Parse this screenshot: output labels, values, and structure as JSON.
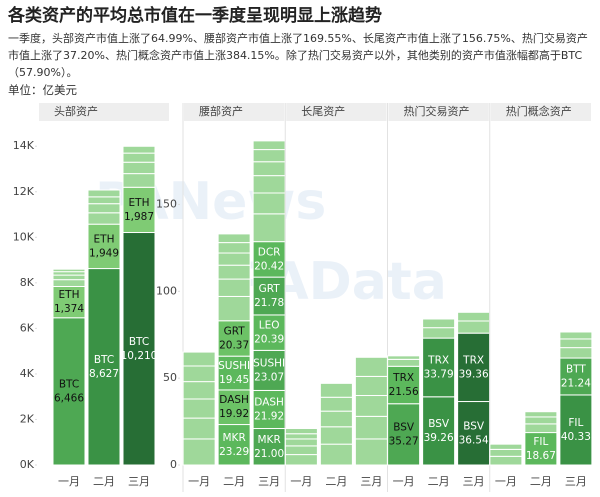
{
  "title": "各类资产的平均总市值在一季度呈现明显上涨趋势",
  "subtitle": "一季度，头部资产市值上涨了64.99%、腰部资产市值上涨了169.55%、长尾资产市值上涨了156.75%、热门交易资产市值上涨了37.20%、热门概念资产市值上涨384.15%。除了热门交易资产以外，其他类别的资产市值涨幅都高于BTC（57.90%）。",
  "unit": "单位：亿美元",
  "watermarks": [
    "PANews",
    "PAData"
  ],
  "chart_data": [
    {
      "type": "bar",
      "stacked": true,
      "stripe_color": "#9fd89a",
      "ylim": [
        0,
        14800
      ],
      "yticks": [
        {
          "value": 0,
          "label": "0K"
        },
        {
          "value": 2000,
          "label": "2K"
        },
        {
          "value": 4000,
          "label": "4K"
        },
        {
          "value": 6000,
          "label": "6K"
        },
        {
          "value": 8000,
          "label": "8K"
        },
        {
          "value": 10000,
          "label": "10K"
        },
        {
          "value": 12000,
          "label": "12K"
        },
        {
          "value": 14000,
          "label": "14K"
        }
      ],
      "groups": [
        {
          "name": "头部资产",
          "categories": [
            "一月",
            "二月",
            "三月"
          ],
          "bars": [
            {
              "segments": [
                {
                  "name": "BTC",
                  "value": 6466,
                  "value_label": "6,466",
                  "color": "#4ea853"
                },
                {
                  "name": "ETH",
                  "value": 1374,
                  "value_label": "1,374",
                  "color": "#7fcb74"
                },
                {
                  "value": 300
                },
                {
                  "value": 200
                },
                {
                  "value": 150
                },
                {
                  "value": 110
                }
              ]
            },
            {
              "segments": [
                {
                  "name": "BTC",
                  "value": 8627,
                  "value_label": "8,627",
                  "color": "#3a9245"
                },
                {
                  "name": "ETH",
                  "value": 1949,
                  "value_label": "1,949",
                  "color": "#7fcb74"
                },
                {
                  "value": 500
                },
                {
                  "value": 400
                },
                {
                  "value": 300
                },
                {
                  "value": 300
                }
              ]
            },
            {
              "segments": [
                {
                  "name": "BTC",
                  "value": 10210,
                  "value_label": "10,210",
                  "color": "#276e35"
                },
                {
                  "name": "ETH",
                  "value": 1987,
                  "value_label": "1,987",
                  "color": "#7fcb74"
                },
                {
                  "value": 600
                },
                {
                  "value": 500
                },
                {
                  "value": 400
                },
                {
                  "value": 300
                }
              ]
            }
          ]
        }
      ]
    },
    {
      "type": "bar",
      "stacked": true,
      "stripe_color": "#9fd89a",
      "ylim": [
        0,
        194
      ],
      "yticks": [
        0,
        50,
        100,
        150
      ],
      "groups": [
        {
          "name": "腰部资产",
          "categories": [
            "一月",
            "二月",
            "三月"
          ],
          "bars": [
            {
              "segments": [
                {
                  "value": 15
                },
                {
                  "value": 12
                },
                {
                  "value": 11
                },
                {
                  "value": 10
                },
                {
                  "value": 9
                },
                {
                  "value": 8
                }
              ]
            },
            {
              "segments": [
                {
                  "name": "MKR",
                  "value": 23.29,
                  "color": "#5cb85c"
                },
                {
                  "name": "DASH",
                  "value": 19.92,
                  "color": "#6cc266"
                },
                {
                  "name": "SUSHI",
                  "value": 19.45,
                  "color": "#5cb85c"
                },
                {
                  "name": "GRT",
                  "value": 20.37,
                  "color": "#6cc266"
                },
                {
                  "value": 14
                },
                {
                  "value": 10
                },
                {
                  "value": 8
                },
                {
                  "value": 7
                },
                {
                  "value": 6
                },
                {
                  "value": 5
                }
              ]
            },
            {
              "segments": [
                {
                  "name": "MKR",
                  "value": 21.0,
                  "value_label": "21.00",
                  "color": "#4ea853"
                },
                {
                  "name": "DASH",
                  "value": 21.92,
                  "color": "#5cb85c"
                },
                {
                  "name": "SUSHI",
                  "value": 23.07,
                  "color": "#4ea853"
                },
                {
                  "name": "LEO",
                  "value": 20.39,
                  "color": "#5cb85c"
                },
                {
                  "name": "GRT",
                  "value": 21.78,
                  "color": "#4ea853"
                },
                {
                  "name": "DCR",
                  "value": 20.42,
                  "color": "#5cb85c"
                },
                {
                  "value": 16
                },
                {
                  "value": 12
                },
                {
                  "value": 10
                },
                {
                  "value": 8
                },
                {
                  "value": 7
                },
                {
                  "value": 5
                }
              ]
            }
          ]
        },
        {
          "name": "长尾资产",
          "categories": [
            "一月",
            "二月",
            "三月"
          ],
          "bars": [
            {
              "segments": [
                {
                  "value": 6
                },
                {
                  "value": 5
                },
                {
                  "value": 4
                },
                {
                  "value": 3
                },
                {
                  "value": 3
                }
              ]
            },
            {
              "segments": [
                {
                  "value": 12
                },
                {
                  "value": 10
                },
                {
                  "value": 9
                },
                {
                  "value": 8
                },
                {
                  "value": 8
                }
              ]
            },
            {
              "segments": [
                {
                  "value": 15
                },
                {
                  "value": 13
                },
                {
                  "value": 12
                },
                {
                  "value": 11
                },
                {
                  "value": 11
                }
              ]
            }
          ]
        },
        {
          "name": "热门交易资产",
          "categories": [
            "一月",
            "二月",
            "三月"
          ],
          "bars": [
            {
              "segments": [
                {
                  "name": "BSV",
                  "value": 35.27,
                  "color": "#4ea853"
                },
                {
                  "name": "TRX",
                  "value": 21.56,
                  "color": "#5cb85c"
                },
                {
                  "value": 4
                },
                {
                  "value": 2
                }
              ]
            },
            {
              "segments": [
                {
                  "name": "BSV",
                  "value": 39.26,
                  "color": "#3a9245"
                },
                {
                  "name": "TRX",
                  "value": 33.79,
                  "color": "#3a9245"
                },
                {
                  "value": 6
                },
                {
                  "value": 5
                }
              ]
            },
            {
              "segments": [
                {
                  "name": "BSV",
                  "value": 36.54,
                  "color": "#276e35"
                },
                {
                  "name": "TRX",
                  "value": 39.36,
                  "color": "#276e35"
                },
                {
                  "value": 7
                },
                {
                  "value": 5
                }
              ]
            }
          ]
        },
        {
          "name": "热门概念资产",
          "categories": [
            "一月",
            "二月",
            "三月"
          ],
          "bars": [
            {
              "segments": [
                {
                  "value": 5
                },
                {
                  "value": 4
                },
                {
                  "value": 3
                }
              ]
            },
            {
              "segments": [
                {
                  "name": "FIL",
                  "value": 18.67,
                  "color": "#5cb85c"
                },
                {
                  "value": 5
                },
                {
                  "value": 4
                },
                {
                  "value": 3
                }
              ]
            },
            {
              "segments": [
                {
                  "name": "FIL",
                  "value": 40.33,
                  "color": "#3a9245"
                },
                {
                  "name": "BTT",
                  "value": 21.24,
                  "color": "#4ea853"
                },
                {
                  "value": 6
                },
                {
                  "value": 5
                },
                {
                  "value": 4
                }
              ]
            }
          ]
        }
      ]
    }
  ]
}
